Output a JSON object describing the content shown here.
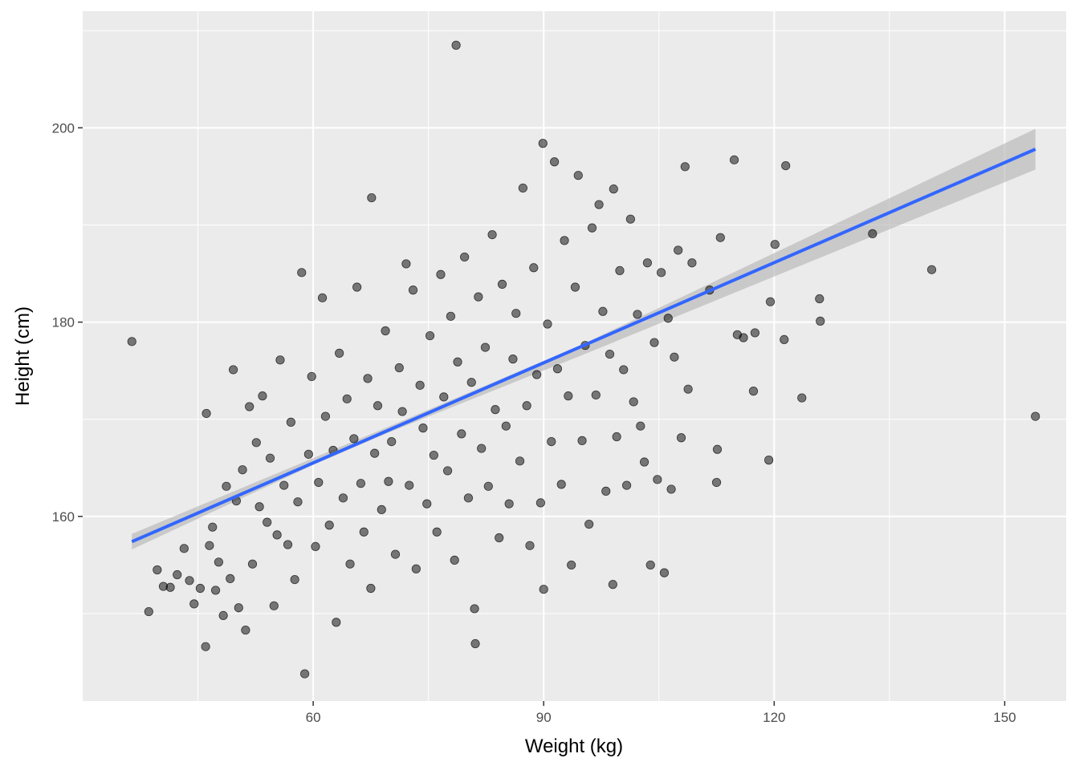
{
  "chart_data": {
    "type": "scatter",
    "title": "",
    "xlabel": "Weight (kg)",
    "ylabel": "Height (cm)",
    "xlim": [
      30,
      158
    ],
    "ylim": [
      141,
      212
    ],
    "x_ticks": [
      60,
      90,
      120,
      150
    ],
    "y_ticks": [
      160,
      180,
      200
    ],
    "x_minor_ticks": [
      45,
      75,
      105,
      135
    ],
    "y_minor_ticks": [
      150,
      170,
      190,
      210
    ],
    "grid": true,
    "legend": "none",
    "colors": {
      "panel_background": "#ebebeb",
      "grid": "#ffffff",
      "point": "#000000",
      "fit_line": "#3366ff",
      "confidence_band": "#b3b3b3"
    },
    "point_alpha": 0.5,
    "regression_line": {
      "x": [
        36.4,
        154
      ],
      "y": [
        157.4,
        197.8
      ]
    },
    "confidence_band": {
      "x": [
        36.4,
        60,
        70,
        95,
        154
      ],
      "lower": [
        156.6,
        165.3,
        168.7,
        176.6,
        195.7
      ],
      "upper": [
        158.2,
        166.0,
        169.3,
        177.7,
        199.9
      ]
    },
    "points": [
      [
        36.4,
        178.0
      ],
      [
        38.6,
        150.2
      ],
      [
        39.7,
        154.5
      ],
      [
        40.5,
        152.8
      ],
      [
        41.4,
        152.7
      ],
      [
        42.3,
        154.0
      ],
      [
        43.2,
        156.7
      ],
      [
        43.9,
        153.4
      ],
      [
        44.5,
        151.0
      ],
      [
        45.3,
        152.6
      ],
      [
        46.0,
        146.6
      ],
      [
        46.1,
        170.6
      ],
      [
        46.5,
        157.0
      ],
      [
        46.9,
        158.9
      ],
      [
        47.3,
        152.4
      ],
      [
        47.7,
        155.3
      ],
      [
        48.3,
        149.8
      ],
      [
        48.7,
        163.1
      ],
      [
        49.2,
        153.6
      ],
      [
        49.6,
        175.1
      ],
      [
        50.0,
        161.6
      ],
      [
        50.3,
        150.6
      ],
      [
        50.8,
        164.8
      ],
      [
        51.2,
        148.3
      ],
      [
        51.7,
        171.3
      ],
      [
        52.1,
        155.1
      ],
      [
        52.6,
        167.6
      ],
      [
        53.0,
        161.0
      ],
      [
        53.4,
        172.4
      ],
      [
        54.0,
        159.4
      ],
      [
        54.4,
        166.0
      ],
      [
        54.9,
        150.8
      ],
      [
        55.3,
        158.1
      ],
      [
        55.7,
        176.1
      ],
      [
        56.2,
        163.2
      ],
      [
        56.7,
        157.1
      ],
      [
        57.1,
        169.7
      ],
      [
        57.6,
        153.5
      ],
      [
        58.0,
        161.5
      ],
      [
        58.5,
        185.1
      ],
      [
        58.9,
        143.8
      ],
      [
        59.4,
        166.4
      ],
      [
        59.8,
        174.4
      ],
      [
        60.3,
        156.9
      ],
      [
        60.7,
        163.5
      ],
      [
        61.2,
        182.5
      ],
      [
        61.6,
        170.3
      ],
      [
        62.1,
        159.1
      ],
      [
        62.6,
        166.8
      ],
      [
        63.0,
        149.1
      ],
      [
        63.4,
        176.8
      ],
      [
        63.9,
        161.9
      ],
      [
        64.4,
        172.1
      ],
      [
        64.8,
        155.1
      ],
      [
        65.3,
        168.0
      ],
      [
        65.7,
        183.6
      ],
      [
        66.2,
        163.4
      ],
      [
        66.6,
        158.4
      ],
      [
        67.1,
        174.2
      ],
      [
        67.5,
        152.6
      ],
      [
        67.6,
        192.8
      ],
      [
        68.0,
        166.5
      ],
      [
        68.4,
        171.4
      ],
      [
        68.9,
        160.7
      ],
      [
        69.4,
        179.1
      ],
      [
        69.8,
        163.6
      ],
      [
        70.2,
        167.7
      ],
      [
        70.7,
        156.1
      ],
      [
        71.2,
        175.3
      ],
      [
        71.6,
        170.8
      ],
      [
        72.1,
        186.0
      ],
      [
        72.5,
        163.2
      ],
      [
        73.0,
        183.3
      ],
      [
        73.4,
        154.6
      ],
      [
        73.9,
        173.5
      ],
      [
        74.3,
        169.1
      ],
      [
        74.8,
        161.3
      ],
      [
        75.2,
        178.6
      ],
      [
        75.7,
        166.3
      ],
      [
        76.1,
        158.4
      ],
      [
        76.6,
        184.9
      ],
      [
        77.0,
        172.3
      ],
      [
        77.5,
        164.7
      ],
      [
        77.9,
        180.6
      ],
      [
        78.4,
        155.5
      ],
      [
        78.6,
        208.5
      ],
      [
        78.8,
        175.9
      ],
      [
        79.3,
        168.5
      ],
      [
        79.7,
        186.7
      ],
      [
        80.2,
        161.9
      ],
      [
        80.6,
        173.8
      ],
      [
        81.0,
        150.5
      ],
      [
        81.1,
        146.9
      ],
      [
        81.5,
        182.6
      ],
      [
        81.9,
        167.0
      ],
      [
        82.4,
        177.4
      ],
      [
        82.8,
        163.1
      ],
      [
        83.3,
        189.0
      ],
      [
        83.7,
        171.0
      ],
      [
        84.2,
        157.8
      ],
      [
        84.6,
        183.9
      ],
      [
        85.1,
        169.3
      ],
      [
        85.5,
        161.3
      ],
      [
        86.0,
        176.2
      ],
      [
        86.4,
        180.9
      ],
      [
        86.9,
        165.7
      ],
      [
        87.3,
        193.8
      ],
      [
        87.8,
        171.4
      ],
      [
        88.2,
        157.0
      ],
      [
        88.7,
        185.6
      ],
      [
        89.1,
        174.6
      ],
      [
        89.6,
        161.4
      ],
      [
        89.9,
        198.4
      ],
      [
        90.0,
        152.5
      ],
      [
        90.5,
        179.8
      ],
      [
        91.0,
        167.7
      ],
      [
        91.4,
        196.5
      ],
      [
        91.8,
        175.2
      ],
      [
        92.3,
        163.3
      ],
      [
        92.7,
        188.4
      ],
      [
        93.2,
        172.4
      ],
      [
        93.6,
        155.0
      ],
      [
        94.1,
        183.6
      ],
      [
        94.5,
        195.1
      ],
      [
        95.0,
        167.8
      ],
      [
        95.4,
        177.6
      ],
      [
        95.9,
        159.2
      ],
      [
        96.3,
        189.7
      ],
      [
        96.8,
        172.5
      ],
      [
        97.2,
        192.1
      ],
      [
        97.7,
        181.1
      ],
      [
        98.1,
        162.6
      ],
      [
        98.6,
        176.7
      ],
      [
        99.0,
        153.0
      ],
      [
        99.1,
        193.7
      ],
      [
        99.5,
        168.2
      ],
      [
        99.9,
        185.3
      ],
      [
        100.4,
        175.1
      ],
      [
        100.8,
        163.2
      ],
      [
        101.3,
        190.6
      ],
      [
        101.7,
        171.8
      ],
      [
        102.2,
        180.8
      ],
      [
        102.6,
        169.3
      ],
      [
        103.1,
        165.6
      ],
      [
        103.5,
        186.1
      ],
      [
        103.9,
        155.0
      ],
      [
        104.4,
        177.9
      ],
      [
        104.8,
        163.8
      ],
      [
        105.3,
        185.1
      ],
      [
        105.7,
        154.2
      ],
      [
        106.2,
        180.4
      ],
      [
        106.6,
        162.8
      ],
      [
        107.0,
        176.4
      ],
      [
        107.5,
        187.4
      ],
      [
        107.9,
        168.1
      ],
      [
        108.4,
        196.0
      ],
      [
        108.8,
        173.1
      ],
      [
        109.3,
        186.1
      ],
      [
        111.6,
        183.3
      ],
      [
        112.5,
        163.5
      ],
      [
        112.6,
        166.9
      ],
      [
        113.0,
        188.7
      ],
      [
        114.8,
        196.7
      ],
      [
        115.2,
        178.7
      ],
      [
        116.0,
        178.4
      ],
      [
        117.3,
        172.9
      ],
      [
        117.5,
        178.9
      ],
      [
        119.3,
        165.8
      ],
      [
        119.5,
        182.1
      ],
      [
        120.1,
        188.0
      ],
      [
        121.3,
        178.2
      ],
      [
        121.5,
        196.1
      ],
      [
        123.6,
        172.2
      ],
      [
        125.9,
        182.4
      ],
      [
        126.0,
        180.1
      ],
      [
        132.8,
        189.1
      ],
      [
        140.5,
        185.4
      ],
      [
        154.0,
        170.3
      ]
    ]
  }
}
